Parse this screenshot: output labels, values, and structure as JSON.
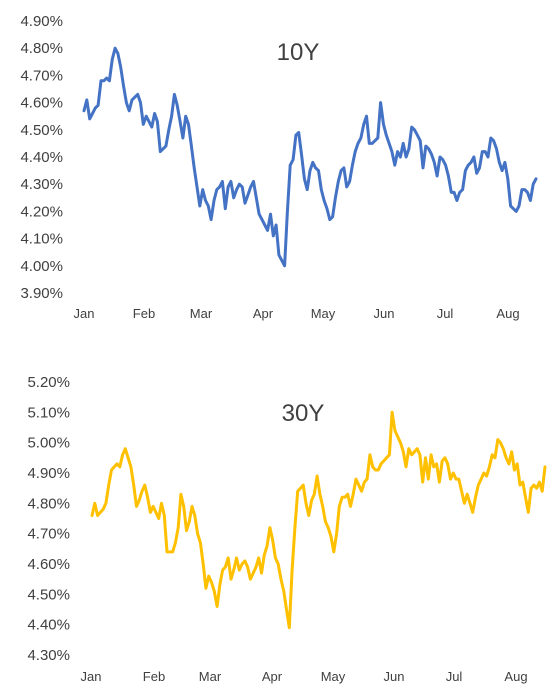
{
  "chart_data": [
    {
      "type": "line",
      "title": "10Y",
      "ylim": [
        3.9,
        4.9
      ],
      "yticks": [
        "4.90%",
        "4.80%",
        "4.70%",
        "4.60%",
        "4.50%",
        "4.40%",
        "4.30%",
        "4.20%",
        "4.10%",
        "4.00%",
        "3.90%"
      ],
      "xticks": [
        "Jan",
        "Feb",
        "Mar",
        "Apr",
        "May",
        "Jun",
        "Jul",
        "Aug"
      ],
      "grid": false,
      "legend": "none",
      "color": "#4472C4",
      "series": [
        {
          "values": [
            4.57,
            4.61,
            4.54,
            4.56,
            4.58,
            4.59,
            4.68,
            4.68,
            4.69,
            4.68,
            4.76,
            4.8,
            4.78,
            4.73,
            4.66,
            4.6,
            4.57,
            4.61,
            4.62,
            4.63,
            4.6,
            4.52,
            4.55,
            4.53,
            4.51,
            4.56,
            4.53,
            4.42,
            4.43,
            4.44,
            4.5,
            4.55,
            4.63,
            4.59,
            4.53,
            4.47,
            4.55,
            4.52,
            4.44,
            4.36,
            4.29,
            4.22,
            4.28,
            4.24,
            4.22,
            4.17,
            4.24,
            4.28,
            4.29,
            4.31,
            4.21,
            4.29,
            4.31,
            4.25,
            4.28,
            4.3,
            4.29,
            4.23,
            4.26,
            4.29,
            4.31,
            4.25,
            4.19,
            4.17,
            4.15,
            4.13,
            4.19,
            4.11,
            4.15,
            4.04,
            4.02,
            4.0,
            4.2,
            4.37,
            4.39,
            4.48,
            4.49,
            4.41,
            4.32,
            4.28,
            4.35,
            4.38,
            4.36,
            4.35,
            4.28,
            4.24,
            4.21,
            4.17,
            4.18,
            4.25,
            4.31,
            4.35,
            4.36,
            4.29,
            4.31,
            4.37,
            4.42,
            4.45,
            4.47,
            4.52,
            4.55,
            4.45,
            4.45,
            4.46,
            4.47,
            4.6,
            4.52,
            4.48,
            4.45,
            4.42,
            4.37,
            4.42,
            4.4,
            4.45,
            4.4,
            4.43,
            4.51,
            4.5,
            4.48,
            4.46,
            4.36,
            4.44,
            4.43,
            4.41,
            4.38,
            4.33,
            4.4,
            4.39,
            4.37,
            4.33,
            4.27,
            4.27,
            4.24,
            4.27,
            4.28,
            4.35,
            4.37,
            4.38,
            4.4,
            4.34,
            4.36,
            4.42,
            4.42,
            4.4,
            4.47,
            4.46,
            4.43,
            4.38,
            4.35,
            4.38,
            4.32,
            4.22,
            4.21,
            4.2,
            4.22,
            4.28,
            4.28,
            4.27,
            4.24,
            4.3,
            4.32
          ]
        }
      ]
    },
    {
      "type": "line",
      "title": "30Y",
      "ylim": [
        4.3,
        5.2
      ],
      "yticks": [
        "5.20%",
        "5.10%",
        "5.00%",
        "4.90%",
        "4.80%",
        "4.70%",
        "4.60%",
        "4.50%",
        "4.40%",
        "4.30%"
      ],
      "xticks": [
        "Jan",
        "Feb",
        "Mar",
        "Apr",
        "May",
        "Jun",
        "Jul",
        "Aug"
      ],
      "grid": false,
      "legend": "none",
      "color": "#FFC000",
      "series": [
        {
          "values": [
            4.76,
            4.8,
            4.76,
            4.77,
            4.78,
            4.8,
            4.86,
            4.91,
            4.92,
            4.93,
            4.92,
            4.96,
            4.98,
            4.95,
            4.92,
            4.86,
            4.79,
            4.81,
            4.84,
            4.86,
            4.82,
            4.77,
            4.79,
            4.77,
            4.75,
            4.8,
            4.76,
            4.64,
            4.64,
            4.64,
            4.67,
            4.72,
            4.83,
            4.79,
            4.71,
            4.74,
            4.79,
            4.76,
            4.7,
            4.67,
            4.6,
            4.52,
            4.56,
            4.54,
            4.51,
            4.46,
            4.53,
            4.58,
            4.59,
            4.62,
            4.55,
            4.58,
            4.62,
            4.58,
            4.6,
            4.61,
            4.59,
            4.55,
            4.57,
            4.59,
            4.62,
            4.57,
            4.63,
            4.66,
            4.72,
            4.68,
            4.62,
            4.6,
            4.55,
            4.51,
            4.45,
            4.39,
            4.58,
            4.72,
            4.84,
            4.85,
            4.86,
            4.8,
            4.76,
            4.81,
            4.83,
            4.89,
            4.83,
            4.79,
            4.74,
            4.72,
            4.69,
            4.64,
            4.7,
            4.79,
            4.82,
            4.82,
            4.83,
            4.79,
            4.83,
            4.88,
            4.86,
            4.84,
            4.87,
            4.88,
            4.96,
            4.92,
            4.91,
            4.91,
            4.93,
            4.94,
            4.95,
            4.96,
            5.1,
            5.04,
            5.02,
            5.0,
            4.97,
            4.92,
            4.98,
            4.96,
            4.97,
            4.98,
            4.96,
            4.87,
            4.95,
            4.88,
            4.96,
            4.92,
            4.93,
            4.87,
            4.94,
            4.95,
            4.93,
            4.88,
            4.9,
            4.88,
            4.88,
            4.84,
            4.8,
            4.83,
            4.8,
            4.77,
            4.82,
            4.86,
            4.88,
            4.9,
            4.89,
            4.92,
            4.96,
            4.95,
            5.01,
            5.0,
            4.98,
            4.95,
            4.93,
            4.97,
            4.91,
            4.93,
            4.86,
            4.87,
            4.82,
            4.77,
            4.85,
            4.86,
            4.85,
            4.87,
            4.84,
            4.92
          ]
        }
      ]
    }
  ]
}
